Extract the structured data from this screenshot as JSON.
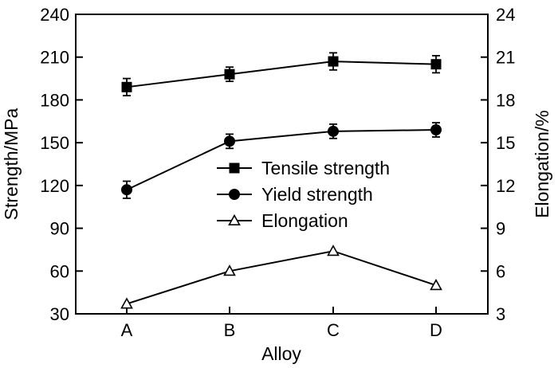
{
  "chart_data": {
    "type": "line",
    "categories": [
      "A",
      "B",
      "C",
      "D"
    ],
    "xlabel": "Alloy",
    "ylabel_left": "Strength/MPa",
    "ylabel_right": "Elongation/%",
    "ylim_left": [
      30,
      240
    ],
    "yticks_left": [
      30,
      60,
      90,
      120,
      150,
      180,
      210,
      240
    ],
    "ylim_right": [
      3,
      24
    ],
    "yticks_right": [
      3,
      6,
      9,
      12,
      15,
      18,
      21,
      24
    ],
    "grid": false,
    "legend_position": "center-right",
    "series": [
      {
        "name": "Tensile strength",
        "axis": "left",
        "marker": "square",
        "values": [
          189,
          198,
          207,
          205
        ],
        "errors": [
          6,
          5,
          6,
          6
        ]
      },
      {
        "name": "Yield strength",
        "axis": "left",
        "marker": "circle",
        "values": [
          117,
          151,
          158,
          159
        ],
        "errors": [
          6,
          5,
          5,
          5
        ]
      },
      {
        "name": "Elongation",
        "axis": "right",
        "marker": "triangle-open",
        "values": [
          3.7,
          6.0,
          7.4,
          5.0
        ],
        "errors": [
          0,
          0,
          0,
          0
        ]
      }
    ]
  }
}
